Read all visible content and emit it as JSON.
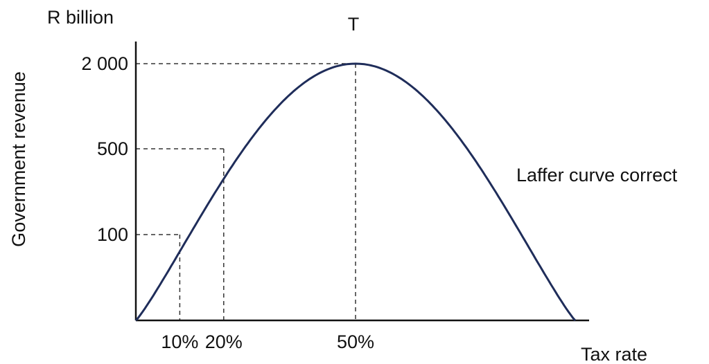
{
  "chart_data": {
    "type": "line",
    "y_unit": "R billion",
    "ylabel": "Government revenue",
    "xlabel": "Tax rate",
    "peak_label": "T",
    "annotation": "Laffer curve correct",
    "x_ticks": [
      "10%",
      "20%",
      "50%"
    ],
    "y_ticks": [
      "100",
      "500",
      "2 000"
    ],
    "marked_points": [
      {
        "x": 10,
        "y": 100,
        "x_label": "10%",
        "y_label": "100"
      },
      {
        "x": 20,
        "y": 500,
        "x_label": "20%",
        "y_label": "500"
      },
      {
        "x": 50,
        "y": 2000,
        "x_label": "50%",
        "y_label": "2 000"
      }
    ],
    "curve_x_range": [
      0,
      100
    ],
    "grid": false,
    "guide_lines": "dashed",
    "colors": {
      "curve": "#1f2d5a",
      "axes": "#111111",
      "guides": "#333333"
    }
  }
}
